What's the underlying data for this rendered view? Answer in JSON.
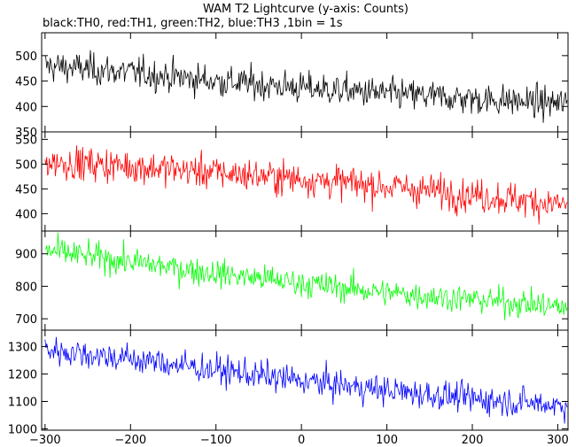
{
  "title": "WAM T2 Lightcurve (y-axis: Counts)",
  "subtitle": "black:TH0, red:TH1, green:TH2, blue:TH3 ,1bin = 1s",
  "chart_data": {
    "type": "line",
    "title": "WAM T2 Lightcurve (y-axis: Counts)",
    "subtitle": "black:TH0, red:TH1, green:TH2, blue:TH3 ,1bin = 1s",
    "xlim": [
      -304,
      312
    ],
    "x_ticks": [
      -300,
      -200,
      -100,
      0,
      100,
      200,
      300
    ],
    "x_step": 1,
    "grid": false,
    "panels": [
      {
        "color": "#000000",
        "ylim": [
          350,
          545
        ],
        "y_ticks": [
          350,
          400,
          450,
          500
        ],
        "trend": [
          [
            -300,
            480
          ],
          [
            -200,
            467
          ],
          [
            -100,
            450
          ],
          [
            0,
            437
          ],
          [
            100,
            425
          ],
          [
            200,
            415
          ],
          [
            310,
            405
          ]
        ],
        "noise": 22
      },
      {
        "color": "#ff0000",
        "ylim": [
          365,
          565
        ],
        "y_ticks": [
          400,
          450,
          500,
          550
        ],
        "trend": [
          [
            -300,
            505
          ],
          [
            -200,
            496
          ],
          [
            -100,
            483
          ],
          [
            0,
            470
          ],
          [
            100,
            455
          ],
          [
            200,
            438
          ],
          [
            310,
            418
          ]
        ],
        "noise": 24
      },
      {
        "color": "#00ff00",
        "ylim": [
          665,
          970
        ],
        "y_ticks": [
          700,
          800,
          900
        ],
        "trend": [
          [
            -300,
            910
          ],
          [
            -200,
            875
          ],
          [
            -100,
            840
          ],
          [
            0,
            810
          ],
          [
            100,
            780
          ],
          [
            200,
            760
          ],
          [
            310,
            735
          ]
        ],
        "noise": 30
      },
      {
        "color": "#0000ff",
        "ylim": [
          995,
          1360
        ],
        "y_ticks": [
          1000,
          1100,
          1200,
          1300
        ],
        "trend": [
          [
            -300,
            1290
          ],
          [
            -200,
            1255
          ],
          [
            -100,
            1215
          ],
          [
            0,
            1175
          ],
          [
            100,
            1140
          ],
          [
            200,
            1110
          ],
          [
            310,
            1085
          ]
        ],
        "noise": 38
      }
    ]
  }
}
